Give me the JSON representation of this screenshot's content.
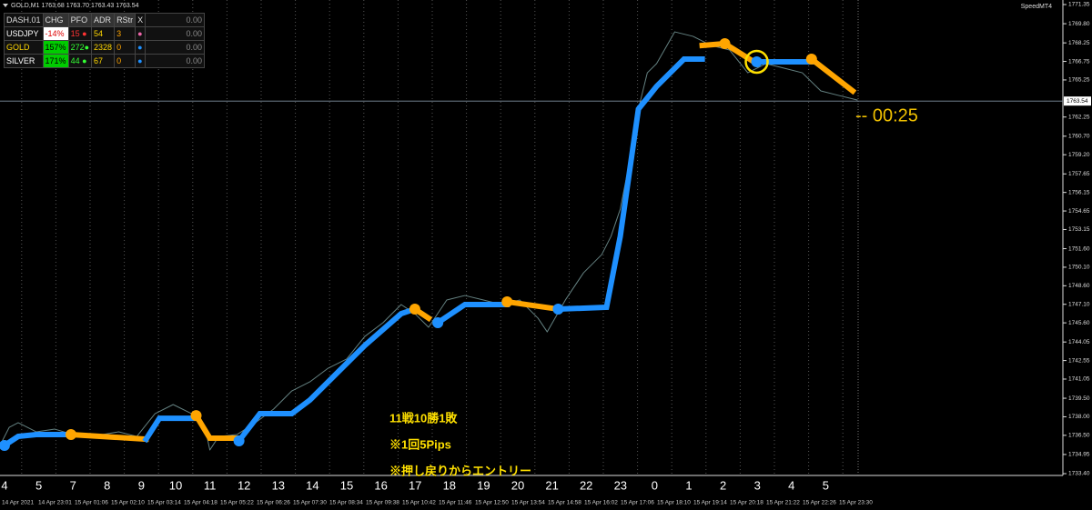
{
  "chart_data": {
    "type": "line",
    "title": "GOLD,M1  1763.68 1763.70 1763.43 1763.54",
    "brand": "SpeedMT4",
    "ylim": [
      1733.4,
      1771.35
    ],
    "yticks": [
      1771.35,
      {
        "value": 1769.8,
        "label": "1769.80"
      },
      1768.25,
      1766.75,
      1765.25,
      1762.25,
      {
        "value": 1760.7,
        "label": "1760.70"
      },
      {
        "value": 1759.2,
        "label": "1759.20"
      },
      1757.65,
      1756.15,
      1754.65,
      1753.15,
      {
        "value": 1751.6,
        "label": "1751.60"
      },
      {
        "value": 1750.1,
        "label": "1750.10"
      },
      {
        "value": 1748.6,
        "label": "1748.60"
      },
      {
        "value": 1747.1,
        "label": "1747.10"
      },
      {
        "value": 1745.6,
        "label": "1745.60"
      },
      1744.05,
      1742.55,
      1741.05,
      {
        "value": 1739.5,
        "label": "1739.50"
      },
      {
        "value": 1738,
        "label": "1738.00"
      },
      {
        "value": 1736.5,
        "label": "1736.50"
      },
      1734.95,
      {
        "value": 1733.4,
        "label": "1733.40"
      }
    ],
    "xlim": [
      0,
      31
    ],
    "session_labels": [
      "4",
      "5",
      "7",
      "8",
      "9",
      "10",
      "11",
      "12",
      "13",
      "14",
      "15",
      "16",
      "17",
      "18",
      "19",
      "20",
      "21",
      "22",
      "23",
      "0",
      "1",
      "2",
      "3",
      "4",
      "5"
    ],
    "date_labels": [
      "14 Apr 2021",
      "14 Apr 23:01",
      "15 Apr 01:06",
      "15 Apr 02:10",
      "15 Apr 03:14",
      "15 Apr 04:18",
      "15 Apr 05:22",
      "15 Apr 06:26",
      "15 Apr 07:30",
      "15 Apr 08:34",
      "15 Apr 09:38",
      "15 Apr 10:42",
      "15 Apr 11:46",
      "15 Apr 12:50",
      "15 Apr 13:54",
      "15 Apr 14:58",
      "15 Apr 16:02",
      "15 Apr 17:06",
      "15 Apr 18:10",
      "15 Apr 19:14",
      "15 Apr 20:18",
      "15 Apr 21:22",
      "15 Apr 22:26",
      "15 Apr 23:30"
    ],
    "series": [
      {
        "color": "#6f8f8f",
        "x": [
          0,
          0.27,
          0.53,
          1.06,
          1.6,
          2.13,
          2.66,
          3.46,
          3.99,
          4.52,
          5.05,
          5.59,
          5.98,
          6.12,
          6.38,
          6.91,
          7.45,
          7.98,
          8.51,
          9.04,
          9.57,
          10.11,
          10.64,
          11.17,
          11.7,
          12.1,
          12.5,
          13.03,
          13.56,
          14.1,
          14.63,
          15.16,
          15.69,
          15.96,
          16.49,
          17.02,
          17.55,
          17.82,
          18.09,
          18.35,
          18.62,
          18.88,
          19.15,
          19.68,
          20.21,
          20.74,
          21.28,
          21.81,
          22.34,
          22.87,
          23.4,
          23.94,
          24.47,
          25.0
        ],
        "values": [
          1735.68,
          1737.15,
          1737.52,
          1736.78,
          1737.0,
          1736.56,
          1736.41,
          1736.78,
          1736.41,
          1738.25,
          1738.99,
          1738.25,
          1737.15,
          1735.31,
          1736.41,
          1736.56,
          1737.52,
          1738.62,
          1740.09,
          1740.83,
          1741.93,
          1742.67,
          1744.5,
          1745.61,
          1747.08,
          1746.34,
          1745.24,
          1747.45,
          1747.81,
          1747.45,
          1747.08,
          1747.45,
          1745.98,
          1744.87,
          1747.45,
          1749.65,
          1751.12,
          1752.59,
          1754.8,
          1758.48,
          1762.89,
          1765.83,
          1766.57,
          1769.14,
          1768.78,
          1768.04,
          1767.67,
          1765.83,
          1766.57,
          1766.2,
          1765.83,
          1764.36,
          1763.99,
          1763.63
        ]
      },
      {
        "color": "#1e90ff",
        "x": [
          0.13,
          0.53,
          1.06,
          2.07
        ],
        "values": [
          1735.68,
          1736.41,
          1736.56,
          1736.56
        ]
      },
      {
        "color": "#ffa500",
        "x": [
          2.07,
          4.26
        ],
        "values": [
          1736.56,
          1736.19
        ]
      },
      {
        "color": "#1e90ff",
        "x": [
          4.26,
          4.65,
          5.72
        ],
        "values": [
          1736.19,
          1737.88,
          1737.88
        ]
      },
      {
        "color": "#ffa500",
        "x": [
          5.72,
          6.12,
          6.97
        ],
        "values": [
          1738.1,
          1736.27,
          1736.27
        ]
      },
      {
        "color": "#1e90ff",
        "x": [
          6.97,
          7.58,
          8.51,
          9.04,
          10.64,
          11.7,
          12.1
        ],
        "values": [
          1736.05,
          1738.25,
          1738.25,
          1739.36,
          1743.77,
          1746.34,
          1746.71
        ]
      },
      {
        "color": "#ffa500",
        "x": [
          12.1,
          12.5
        ],
        "values": [
          1746.71,
          1745.98
        ]
      },
      {
        "color": "#1e90ff",
        "x": [
          12.77,
          13.56,
          14.79
        ],
        "values": [
          1745.61,
          1747.08,
          1747.08
        ]
      },
      {
        "color": "#ffa500",
        "x": [
          14.79,
          16.28
        ],
        "values": [
          1747.3,
          1746.71
        ]
      },
      {
        "color": "#1e90ff",
        "x": [
          16.28,
          17.69,
          18.09,
          18.62,
          19.15,
          19.95,
          20.48
        ],
        "values": [
          1746.71,
          1746.86,
          1752.59,
          1762.89,
          1764.73,
          1766.94,
          1766.94
        ]
      },
      {
        "color": "#ffa500",
        "x": [
          20.48,
          21.14,
          22.07
        ],
        "values": [
          1768.04,
          1768.19,
          1766.57
        ]
      },
      {
        "color": "#1e90ff",
        "x": [
          22.07,
          23.67
        ],
        "values": [
          1766.72,
          1766.72
        ]
      },
      {
        "color": "#ffa500",
        "x": [
          23.67,
          24.87
        ],
        "values": [
          1766.94,
          1764.36
        ]
      }
    ],
    "entries": {
      "x": [
        0.13,
        2.07,
        5.72,
        6.97,
        12.1,
        12.77,
        14.79,
        16.28,
        21.14,
        22.07,
        23.67
      ],
      "values": [
        1735.68,
        1736.56,
        1738.1,
        1736.05,
        1746.71,
        1745.61,
        1747.3,
        1746.71,
        1768.19,
        1766.72,
        1766.94
      ],
      "colors": [
        "#1e90ff",
        "#ffa500",
        "#ffa500",
        "#1e90ff",
        "#ffa500",
        "#1e90ff",
        "#ffa500",
        "#1e90ff",
        "#ffa500",
        "#1e90ff",
        "#ffa500"
      ]
    },
    "highlight": {
      "x": 22.07,
      "value": 1766.72,
      "color": "#ffe000"
    },
    "current_price": {
      "value": 1763.54,
      "label": "1763.54"
    },
    "timer": "-- 00:25",
    "annotations": [
      "11戦10勝1敗",
      "※1回5Pips",
      "※押し戻りからエントリー"
    ]
  },
  "dashboard": {
    "header": [
      "DASH.01",
      "CHG",
      "PFO",
      "ADR",
      "RStr",
      "X",
      "0.00"
    ],
    "rows": [
      [
        "USDJPY",
        "-14%",
        "15",
        "54",
        "3",
        "0.00"
      ],
      [
        "GOLD",
        "157%",
        "272",
        "2328",
        "0",
        "0.00"
      ],
      [
        "SILVER",
        "171%",
        "44",
        "67",
        "0",
        "0.00"
      ]
    ]
  }
}
